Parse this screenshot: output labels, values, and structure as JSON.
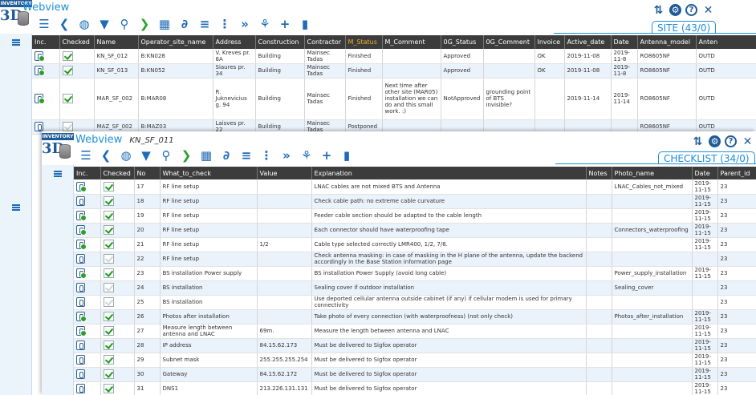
{
  "site_window": {
    "logo": {
      "top": "INVENTORY",
      "main": "3D"
    },
    "title": "Webview",
    "badge": "SITE (43/0)",
    "columns": [
      "Inc.",
      "Checked",
      "Name",
      "Operator_site_name",
      "Address",
      "Construction",
      "Contractor",
      "M_Status",
      "M_Comment",
      "0G_Status",
      "0G_Comment",
      "Invoice",
      "Active_date",
      "Date",
      "Antenna_model",
      "Anten"
    ],
    "rows": [
      {
        "inc": "ok",
        "checked": true,
        "name": "KN_SF_012",
        "operator_site_name": "B:KN028",
        "address": "V. Kreves pr. 8A",
        "construction": "Building",
        "contractor": "Mainsec Tadas",
        "m_status": "Finished",
        "m_comment": "",
        "og_status": "Approved",
        "og_comment": "",
        "invoice": "OK",
        "active_date": "2019-11-08",
        "date": "2019-11-8",
        "antenna_model": "RO8605NF",
        "anten": "OUTD"
      },
      {
        "inc": "ok",
        "checked": true,
        "name": "KN_SF_013",
        "operator_site_name": "B:KN052",
        "address": "Siaures pr. 34",
        "construction": "Building",
        "contractor": "Mainsec Tadas",
        "m_status": "Finished",
        "m_comment": "",
        "og_status": "Approved",
        "og_comment": "",
        "invoice": "OK",
        "active_date": "2019-11-08",
        "date": "2019-11-8",
        "antenna_model": "RO8605NF",
        "anten": "OUTD"
      },
      {
        "inc": "ok",
        "checked": true,
        "name": "MAR_SF_002",
        "operator_site_name": "B:MAR08",
        "address": "R. Juknevicius g. 94",
        "construction": "Building",
        "contractor": "Mainsec Tadas",
        "m_status": "Finished",
        "m_comment": "Next time after other site (MAR05) installation we can do and this small work. :)",
        "og_status": "NotApproved",
        "og_comment": "grounding point of BTS invisible?",
        "invoice": "",
        "active_date": "2019-11-14",
        "date": "2019-11-14",
        "antenna_model": "RO8605NF",
        "anten": "OUTD"
      },
      {
        "inc": "",
        "checked": false,
        "name": "MAZ_SF_002",
        "operator_site_name": "B:MAZ03",
        "address": "Laisves pr. 22",
        "construction": "Building",
        "contractor": "Mainsec Tadas",
        "m_status": "Postponed",
        "m_comment": "",
        "og_status": "",
        "og_comment": "",
        "invoice": "",
        "active_date": "",
        "date": "",
        "antenna_model": "RO8605NF",
        "anten": "OUTD"
      }
    ]
  },
  "checklist_window": {
    "logo": {
      "top": "INVENTORY",
      "main": "3D"
    },
    "title": "Webview",
    "subtitle": "KN_SF_011",
    "badge": "CHECKLIST (34/0)",
    "columns": [
      "Inc.",
      "Checked",
      "No",
      "What_to_check",
      "Value",
      "Explanation",
      "Notes",
      "Photo_name",
      "Date",
      "Parent_id"
    ],
    "rows": [
      {
        "inc": "ok",
        "checked": true,
        "no": "17",
        "what": "RF line setup",
        "value": "",
        "explanation": "LNAC cables are not mixed BTS and Antenna",
        "notes": "",
        "photo": "LNAC_Cables_not_mixed",
        "date": "2019-11-15",
        "parent": "23"
      },
      {
        "inc": "",
        "checked": true,
        "no": "18",
        "what": "RF line setup",
        "value": "",
        "explanation": "Check cable path: no extreme cable curvature",
        "notes": "",
        "photo": "",
        "date": "2019-11-15",
        "parent": "23"
      },
      {
        "inc": "ok",
        "checked": true,
        "no": "19",
        "what": "RF line setup",
        "value": "",
        "explanation": "Feeder cable section should be adapted to the cable length",
        "notes": "",
        "photo": "",
        "date": "2019-11-15",
        "parent": "23"
      },
      {
        "inc": "ok",
        "checked": true,
        "no": "20",
        "what": "RF line setup",
        "value": "",
        "explanation": "Each connector should have waterproofing tape",
        "notes": "",
        "photo": "Connectors_waterproofing",
        "date": "2019-11-15",
        "parent": "23"
      },
      {
        "inc": "ok",
        "checked": true,
        "no": "21",
        "what": "RF line setup",
        "value": "1/2",
        "explanation": "Cable type selected correctly LMR400, 1/2, 7/8.",
        "notes": "",
        "photo": "",
        "date": "2019-11-15",
        "parent": "23"
      },
      {
        "inc": "",
        "checked": false,
        "no": "22",
        "what": "RF line setup",
        "value": "",
        "explanation": "Check antenna masking: in case of masking in the H plane of the antenna, update the backend accordingly in the Base Station information page",
        "notes": "",
        "photo": "",
        "date": "",
        "parent": "23"
      },
      {
        "inc": "ok",
        "checked": true,
        "no": "23",
        "what": "BS installation Power supply",
        "value": "",
        "explanation": "BS installation Power Supply (avoid long cable)",
        "notes": "",
        "photo": "Power_supply_installation",
        "date": "2019-11-15",
        "parent": "23"
      },
      {
        "inc": "",
        "checked": false,
        "no": "24",
        "what": "BS installation",
        "value": "",
        "explanation": "Sealing cover if outdoor installation",
        "notes": "",
        "photo": "Sealing_cover",
        "date": "",
        "parent": "23"
      },
      {
        "inc": "",
        "checked": false,
        "no": "25",
        "what": "BS installation",
        "value": "",
        "explanation": "Use deported cellular antenna outside cabinet (if any) if cellular modem is used for primary connectivity",
        "notes": "",
        "photo": "",
        "date": "",
        "parent": "23"
      },
      {
        "inc": "ok",
        "checked": true,
        "no": "26",
        "what": "Photos after installation",
        "value": "",
        "explanation": "Take photo of every connection (with waterproofness) (not only check)",
        "notes": "",
        "photo": "Photos_after_installation",
        "date": "2019-11-15",
        "parent": "23"
      },
      {
        "inc": "ok",
        "checked": true,
        "no": "27",
        "what": "Measure length between antenna and LNAC",
        "value": "69m.",
        "explanation": "Measure the length between antenna and LNAC",
        "notes": "",
        "photo": "",
        "date": "2019-11-15",
        "parent": "23"
      },
      {
        "inc": "",
        "checked": true,
        "no": "28",
        "what": "IP address",
        "value": "84.15.62.173",
        "explanation": "Must be delivered to Sigfox operator",
        "notes": "",
        "photo": "",
        "date": "2019-11-15",
        "parent": "23"
      },
      {
        "inc": "",
        "checked": true,
        "no": "29",
        "what": "Subnet mask",
        "value": "255.255.255.254",
        "explanation": "Must be delivered to Sigfox operator",
        "notes": "",
        "photo": "",
        "date": "2019-11-15",
        "parent": "23"
      },
      {
        "inc": "",
        "checked": true,
        "no": "30",
        "what": "Gateway",
        "value": "84.15.62.172",
        "explanation": "Must be delivered to Sigfox operator",
        "notes": "",
        "photo": "",
        "date": "2019-11-15",
        "parent": "23"
      },
      {
        "inc": "",
        "checked": true,
        "no": "31",
        "what": "DNS1",
        "value": "213.226.131.131",
        "explanation": "Must be delivered to Sigfox operator",
        "notes": "",
        "photo": "",
        "date": "2019-11-15",
        "parent": "23"
      }
    ]
  },
  "toolbar_icons": [
    "list-icon",
    "back-icon",
    "globe-icon",
    "filter-icon",
    "search-key-icon",
    "forward-icon",
    "grid-icon",
    "attachment-icon",
    "database-icon",
    "more-vertical-icon",
    "fast-forward-icon",
    "tree-icon",
    "add-icon",
    "delete-icon"
  ],
  "colors": {
    "accent": "#1f8fd8",
    "header_bg": "#3c3c3c",
    "highlight_header": "#f6b02e",
    "row_alt": "#eaf2fb",
    "check_green": "#1a9d1a"
  }
}
